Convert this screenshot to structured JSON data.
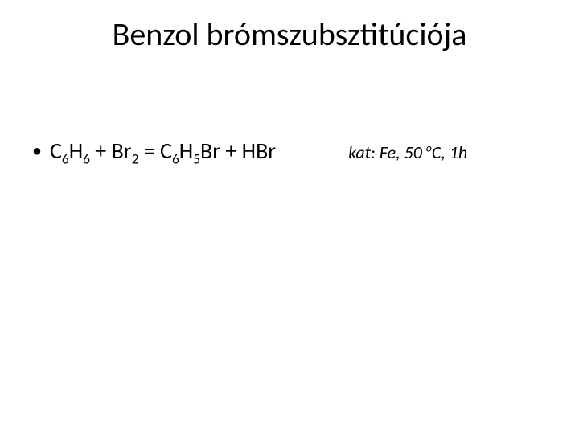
{
  "slide": {
    "title": "Benzol brómszubsztitúciója",
    "title_fontsize": 40,
    "title_color": "#000000",
    "background_color": "#ffffff"
  },
  "equation": {
    "bullet_char": "•",
    "reactant1_base": "C",
    "reactant1_sub1": "6",
    "reactant1_mid": "H",
    "reactant1_sub2": "6",
    "plus1": " + ",
    "reactant2_base": "Br",
    "reactant2_sub": "2",
    "equals": " = ",
    "product1_base": "C",
    "product1_sub1": "6",
    "product1_mid": "H",
    "product1_sub2": "5",
    "product1_end": "Br",
    "plus2": " + ",
    "product2": "HBr",
    "fontsize": 28,
    "color": "#000000"
  },
  "conditions": {
    "prefix": "kat: Fe, 50 ",
    "degree_sup": "o",
    "suffix": "C, 1h",
    "fontsize": 22,
    "font_style": "italic",
    "color": "#000000"
  }
}
